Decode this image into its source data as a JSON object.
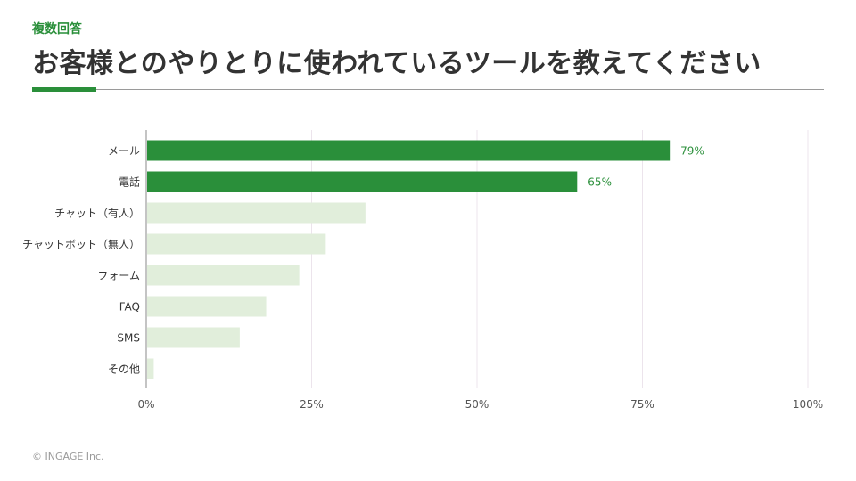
{
  "header": {
    "tag": "複数回答",
    "title": "お客様とのやりとりに使われているツールを教えてください"
  },
  "footer": {
    "copyright": "© INGAGE Inc."
  },
  "colors": {
    "accent": "#2a8f3a",
    "bar_highlight": "#2a8f3a",
    "bar_faded": "#e1eedb",
    "grid": "#ece4ec",
    "text": "#333333"
  },
  "chart_data": {
    "type": "bar",
    "orientation": "horizontal",
    "categories": [
      "メール",
      "電話",
      "チャット（有人）",
      "チャットボット（無人）",
      "フォーム",
      "FAQ",
      "SMS",
      "その他"
    ],
    "values": [
      79,
      65,
      33,
      27,
      23,
      18,
      14,
      1
    ],
    "value_labels": [
      "79%",
      "65%",
      "",
      "",
      "",
      "",
      "",
      ""
    ],
    "highlighted": [
      true,
      true,
      false,
      false,
      false,
      false,
      false,
      false
    ],
    "xlim": [
      0,
      100
    ],
    "xticks": [
      "0%",
      "25%",
      "50%",
      "75%",
      "100%"
    ],
    "xtick_values": [
      0,
      25,
      50,
      75,
      100
    ],
    "grid": true
  }
}
